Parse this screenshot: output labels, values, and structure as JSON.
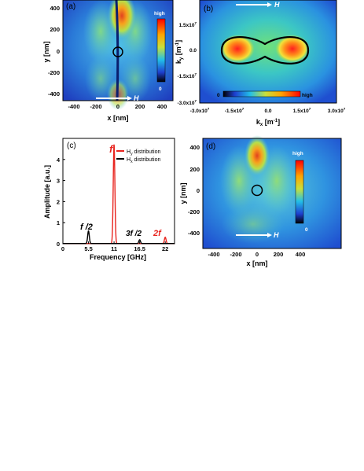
{
  "panels": {
    "a": {
      "label": "(a)",
      "xlabel": "x [nm]",
      "ylabel": "y [nm]",
      "xticks": [
        "-400",
        "-200",
        "0",
        "200",
        "400"
      ],
      "yticks": [
        "400",
        "200",
        "0",
        "-200",
        "-400"
      ],
      "colorbar": {
        "top": "high",
        "bottom": "0"
      },
      "field_label": "H"
    },
    "b": {
      "label": "(b)",
      "xlabel": "k",
      "xsub": "x",
      "xunit": " [m",
      "xexp": "-1",
      "xclose": "]",
      "ylabel": "k",
      "ysub": "y",
      "yunit": " [m",
      "yexp": "-1",
      "yclose": "]",
      "xticks": [
        "-3.0x10",
        "-1.5x10",
        "0.0",
        "1.5x10",
        "3.0x10"
      ],
      "xexps": [
        "7",
        "7",
        "",
        "7",
        "7"
      ],
      "yticks": [
        "1.5x10",
        "0.0",
        "-1.5x10",
        "-3.0x10"
      ],
      "yexps": [
        "7",
        "",
        "7",
        "7"
      ],
      "colorbar": {
        "left": "0",
        "right": "high"
      },
      "field_label": "H"
    },
    "c": {
      "label": "(c)",
      "xlabel": "Frequency [GHz]",
      "ylabel": "Amplitude [a.u.]",
      "xticks": [
        "0",
        "5.5",
        "11",
        "16.5",
        "22"
      ],
      "yticks": [
        "0",
        "1",
        "2",
        "3",
        "4"
      ],
      "legend": [
        {
          "pre": "H",
          "sub": "y",
          "post": " distribution",
          "color": "#e8251f"
        },
        {
          "pre": "H",
          "sub": "x",
          "post": " distribution",
          "color": "#000000"
        }
      ],
      "annotations": [
        {
          "text": "f",
          "color": "#e8251f"
        },
        {
          "text": "f /2",
          "color": "#000000"
        },
        {
          "text": "3f /2",
          "color": "#000000"
        },
        {
          "text": "2f",
          "color": "#e8251f"
        }
      ]
    },
    "d": {
      "label": "(d)",
      "xlabel": "x [nm]",
      "ylabel": "y [nm]",
      "xticks": [
        "-400",
        "-200",
        "0",
        "200",
        "400"
      ],
      "yticks": [
        "400",
        "200",
        "0",
        "-200",
        "-400"
      ],
      "colorbar": {
        "top": "high",
        "bottom": "0"
      },
      "field_label": "H"
    }
  },
  "chart_data": [
    {
      "type": "heatmap",
      "panel": "a",
      "xlim": [
        -500,
        500
      ],
      "ylim": [
        -500,
        450
      ],
      "features": "two lobes along y axis, vertical dark line at x=0, circle at origin"
    },
    {
      "type": "heatmap",
      "panel": "b",
      "xlim": [
        -30000000.0,
        30000000.0
      ],
      "ylim": [
        -30000000.0,
        20000000.0
      ],
      "features": "peanut-shaped contour, red maxima near kx=±1.5e7"
    },
    {
      "type": "line",
      "panel": "c",
      "xlim": [
        0,
        24
      ],
      "ylim": [
        0,
        5
      ],
      "series": [
        {
          "name": "Hy distribution",
          "color": "#e8251f",
          "peaks": [
            {
              "x": 11,
              "y": 4.7
            },
            {
              "x": 22,
              "y": 0.3
            }
          ]
        },
        {
          "name": "Hx distribution",
          "color": "#000000",
          "peaks": [
            {
              "x": 5.5,
              "y": 0.6
            },
            {
              "x": 16.5,
              "y": 0.18
            }
          ]
        }
      ]
    },
    {
      "type": "heatmap",
      "panel": "d",
      "xlim": [
        -500,
        500
      ],
      "ylim": [
        -450,
        450
      ],
      "features": "single red lobe above origin, circle at origin"
    }
  ]
}
